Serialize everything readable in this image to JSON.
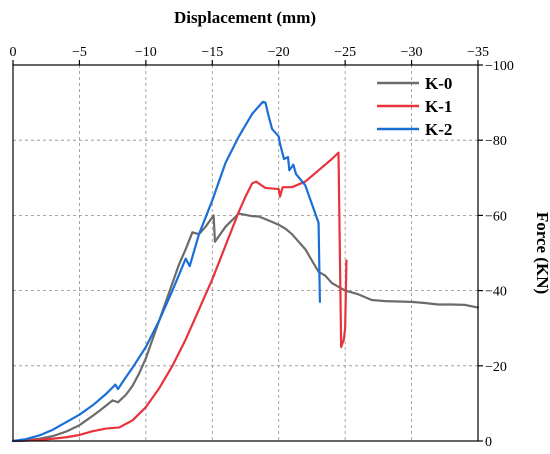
{
  "chart_data": {
    "type": "line",
    "xlabel": "Displacement (mm)",
    "ylabel": "Force (KN)",
    "xlim": [
      0,
      -35
    ],
    "ylim": [
      0,
      -100
    ],
    "x_ticks": [
      0,
      -5,
      -10,
      -15,
      -20,
      -25,
      -30,
      -35
    ],
    "y_ticks": [
      0,
      -20,
      -40,
      -60,
      -80,
      -100
    ],
    "x_tick_labels": [
      "0",
      "−5",
      "−10",
      "−15",
      "−20",
      "−25",
      "−30",
      "−35"
    ],
    "y_tick_labels": [
      "0",
      "−20",
      "−40",
      "−60",
      "−80",
      "−100"
    ],
    "grid": true,
    "legend_position": "top-right",
    "series": [
      {
        "name": "K-0",
        "color": "#6b6b6b",
        "points": [
          [
            0,
            0
          ],
          [
            -1,
            -0.2
          ],
          [
            -2,
            -0.6
          ],
          [
            -3,
            -1.3
          ],
          [
            -4,
            -2.5
          ],
          [
            -5,
            -4.2
          ],
          [
            -6,
            -6.7
          ],
          [
            -6.5,
            -8
          ],
          [
            -7,
            -9.4
          ],
          [
            -7.5,
            -10.8
          ],
          [
            -7.9,
            -10.3
          ],
          [
            -8.5,
            -12.3
          ],
          [
            -9,
            -14.7
          ],
          [
            -9.5,
            -18
          ],
          [
            -10,
            -22
          ],
          [
            -10.5,
            -27
          ],
          [
            -11,
            -32
          ],
          [
            -11.5,
            -37
          ],
          [
            -12,
            -42
          ],
          [
            -12.5,
            -47
          ],
          [
            -13,
            -51
          ],
          [
            -13.5,
            -55.5
          ],
          [
            -14,
            -55
          ],
          [
            -14.5,
            -57
          ],
          [
            -15,
            -59.5
          ],
          [
            -15.1,
            -60
          ],
          [
            -15.2,
            -53
          ],
          [
            -16,
            -57
          ],
          [
            -17,
            -60.5
          ],
          [
            -18,
            -59.8
          ],
          [
            -18.5,
            -59.7
          ],
          [
            -19,
            -59
          ],
          [
            -20,
            -57.5
          ],
          [
            -20.5,
            -56.5
          ],
          [
            -21,
            -55
          ],
          [
            -22,
            -51
          ],
          [
            -22.5,
            -48
          ],
          [
            -23,
            -45
          ],
          [
            -23.5,
            -44
          ],
          [
            -24,
            -42
          ],
          [
            -25,
            -40
          ],
          [
            -26,
            -39
          ],
          [
            -27,
            -37.5
          ],
          [
            -28,
            -37.2
          ],
          [
            -29,
            -37.1
          ],
          [
            -30,
            -37
          ],
          [
            -31,
            -36.7
          ],
          [
            -32,
            -36.3
          ],
          [
            -33,
            -36.3
          ],
          [
            -34,
            -36.2
          ],
          [
            -35,
            -35.5
          ]
        ]
      },
      {
        "name": "K-1",
        "color": "#e8323c",
        "points": [
          [
            0,
            0
          ],
          [
            -1,
            -0.1
          ],
          [
            -2,
            -0.3
          ],
          [
            -3,
            -0.6
          ],
          [
            -4,
            -1
          ],
          [
            -5,
            -1.6
          ],
          [
            -6,
            -2.6
          ],
          [
            -7,
            -3.3
          ],
          [
            -8,
            -3.6
          ],
          [
            -9,
            -5.5
          ],
          [
            -10,
            -9
          ],
          [
            -11,
            -14
          ],
          [
            -12,
            -20
          ],
          [
            -13,
            -27
          ],
          [
            -14,
            -35
          ],
          [
            -15,
            -43
          ],
          [
            -16,
            -52
          ],
          [
            -17,
            -61
          ],
          [
            -17.5,
            -65
          ],
          [
            -18,
            -68.5
          ],
          [
            -18.3,
            -69
          ],
          [
            -18.7,
            -68
          ],
          [
            -19,
            -67.3
          ],
          [
            -20,
            -67
          ],
          [
            -20.1,
            -65
          ],
          [
            -20.3,
            -67.5
          ],
          [
            -21,
            -67.5
          ],
          [
            -22,
            -69
          ],
          [
            -23,
            -72
          ],
          [
            -24,
            -75
          ],
          [
            -24.5,
            -76.7
          ],
          [
            -24.7,
            -25
          ],
          [
            -24.9,
            -27
          ],
          [
            -25,
            -30
          ],
          [
            -25.1,
            -48
          ]
        ]
      },
      {
        "name": "K-2",
        "color": "#1a6fd6",
        "points": [
          [
            0,
            0
          ],
          [
            -1,
            -0.5
          ],
          [
            -2,
            -1.5
          ],
          [
            -3,
            -3
          ],
          [
            -4,
            -5
          ],
          [
            -5,
            -7
          ],
          [
            -6,
            -9.5
          ],
          [
            -7,
            -12.5
          ],
          [
            -7.7,
            -15
          ],
          [
            -7.9,
            -13.8
          ],
          [
            -8.5,
            -17
          ],
          [
            -9,
            -19.5
          ],
          [
            -10,
            -25
          ],
          [
            -11,
            -32
          ],
          [
            -12,
            -40
          ],
          [
            -13,
            -48.5
          ],
          [
            -13.3,
            -46.5
          ],
          [
            -14,
            -55
          ],
          [
            -15,
            -64
          ],
          [
            -15.3,
            -67
          ],
          [
            -16,
            -74
          ],
          [
            -17,
            -81
          ],
          [
            -18,
            -87
          ],
          [
            -18.8,
            -90.2
          ],
          [
            -19,
            -90
          ],
          [
            -19.2,
            -87
          ],
          [
            -19.5,
            -83
          ],
          [
            -20,
            -81
          ],
          [
            -20.1,
            -79
          ],
          [
            -20.4,
            -75
          ],
          [
            -20.7,
            -75.5
          ],
          [
            -20.8,
            -72
          ],
          [
            -21.1,
            -73.5
          ],
          [
            -21.3,
            -71
          ],
          [
            -22,
            -68
          ],
          [
            -22.5,
            -63
          ],
          [
            -23,
            -58
          ],
          [
            -23.1,
            -37
          ]
        ]
      }
    ]
  }
}
